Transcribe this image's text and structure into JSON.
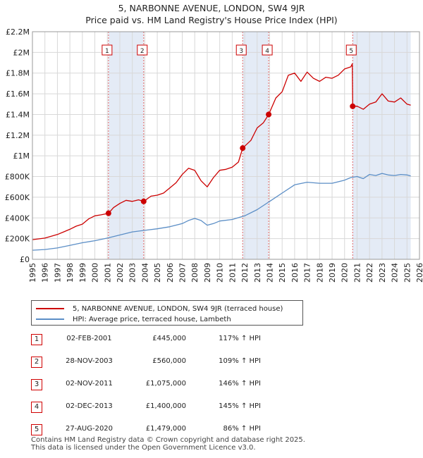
{
  "chart_data": {
    "type": "line",
    "title": "5, NARBONNE AVENUE, LONDON, SW4 9JR",
    "subtitle": "Price paid vs. HM Land Registry's House Price Index (HPI)",
    "xlabel": "",
    "ylabel": "",
    "xlim": [
      1995,
      2026
    ],
    "ylim": [
      0,
      2200000
    ],
    "grid": true,
    "x_ticks": [
      "1995",
      "1996",
      "1997",
      "1998",
      "1999",
      "2000",
      "2001",
      "2002",
      "2003",
      "2004",
      "2005",
      "2006",
      "2007",
      "2008",
      "2009",
      "2010",
      "2011",
      "2012",
      "2013",
      "2014",
      "2015",
      "2016",
      "2017",
      "2018",
      "2019",
      "2020",
      "2021",
      "2022",
      "2023",
      "2024",
      "2025",
      "2026"
    ],
    "y_ticks": [
      {
        "value": 0,
        "label": "£0"
      },
      {
        "value": 200000,
        "label": "£200K"
      },
      {
        "value": 400000,
        "label": "£400K"
      },
      {
        "value": 600000,
        "label": "£600K"
      },
      {
        "value": 800000,
        "label": "£800K"
      },
      {
        "value": 1000000,
        "label": "£1M"
      },
      {
        "value": 1200000,
        "label": "£1.2M"
      },
      {
        "value": 1400000,
        "label": "£1.4M"
      },
      {
        "value": 1600000,
        "label": "£1.6M"
      },
      {
        "value": 1800000,
        "label": "£1.8M"
      },
      {
        "value": 2000000,
        "label": "£2M"
      },
      {
        "value": 2200000,
        "label": "£2.2M"
      }
    ],
    "shaded_periods": [
      [
        2001.09,
        2003.91
      ],
      [
        2011.84,
        2013.92
      ],
      [
        2020.65,
        2025.3
      ]
    ],
    "series": [
      {
        "name": "5, NARBONNE AVENUE, LONDON, SW4 9JR (terraced house)",
        "color": "#cc0000",
        "x": [
          1995.0,
          1996.0,
          1997.0,
          1997.5,
          1998.0,
          1998.5,
          1999.0,
          1999.5,
          2000.0,
          2000.5,
          2001.09,
          2001.5,
          2002.0,
          2002.5,
          2003.0,
          2003.5,
          2003.91,
          2004.5,
          2005.0,
          2005.5,
          2006.0,
          2006.5,
          2007.0,
          2007.5,
          2008.0,
          2008.5,
          2009.0,
          2009.5,
          2010.0,
          2010.5,
          2011.0,
          2011.5,
          2011.84,
          2012.5,
          2013.0,
          2013.5,
          2013.92,
          2014.5,
          2015.0,
          2015.5,
          2016.0,
          2016.5,
          2017.0,
          2017.5,
          2018.0,
          2018.5,
          2019.0,
          2019.5,
          2020.0,
          2020.5,
          2020.62,
          2020.65,
          2021.0,
          2021.5,
          2022.0,
          2022.5,
          2023.0,
          2023.5,
          2024.0,
          2024.5,
          2025.0,
          2025.3
        ],
        "values": [
          190000,
          205000,
          240000,
          265000,
          290000,
          320000,
          340000,
          390000,
          420000,
          430000,
          445000,
          500000,
          540000,
          570000,
          560000,
          575000,
          560000,
          610000,
          620000,
          640000,
          690000,
          740000,
          820000,
          880000,
          860000,
          760000,
          700000,
          790000,
          860000,
          870000,
          890000,
          940000,
          1075000,
          1150000,
          1270000,
          1320000,
          1400000,
          1560000,
          1620000,
          1780000,
          1800000,
          1720000,
          1810000,
          1750000,
          1720000,
          1760000,
          1750000,
          1780000,
          1840000,
          1860000,
          1890000,
          1479000,
          1480000,
          1450000,
          1500000,
          1520000,
          1600000,
          1530000,
          1520000,
          1560000,
          1500000,
          1490000
        ]
      },
      {
        "name": "HPI: Average price, terraced house, Lambeth",
        "color": "#5b8ec6",
        "x": [
          1995.0,
          1996.0,
          1997.0,
          1998.0,
          1999.0,
          2000.0,
          2001.0,
          2002.0,
          2003.0,
          2004.0,
          2005.0,
          2006.0,
          2007.0,
          2007.5,
          2008.0,
          2008.5,
          2009.0,
          2009.5,
          2010.0,
          2011.0,
          2012.0,
          2013.0,
          2014.0,
          2015.0,
          2016.0,
          2017.0,
          2018.0,
          2019.0,
          2020.0,
          2020.5,
          2021.0,
          2021.5,
          2022.0,
          2022.5,
          2023.0,
          2023.5,
          2024.0,
          2024.5,
          2025.0,
          2025.3
        ],
        "values": [
          88000,
          95000,
          110000,
          135000,
          160000,
          180000,
          205000,
          235000,
          265000,
          280000,
          295000,
          315000,
          345000,
          375000,
          395000,
          375000,
          330000,
          345000,
          370000,
          385000,
          420000,
          480000,
          560000,
          640000,
          720000,
          745000,
          735000,
          735000,
          765000,
          790000,
          800000,
          780000,
          820000,
          810000,
          830000,
          815000,
          810000,
          820000,
          815000,
          805000
        ]
      }
    ],
    "sales": [
      {
        "id": "1",
        "date": "02-FEB-2001",
        "year": 2001.09,
        "price": 445000,
        "price_label": "£445,000",
        "hpi": "117% ↑ HPI"
      },
      {
        "id": "2",
        "date": "28-NOV-2003",
        "year": 2003.91,
        "price": 560000,
        "price_label": "£560,000",
        "hpi": "109% ↑ HPI"
      },
      {
        "id": "3",
        "date": "02-NOV-2011",
        "year": 2011.84,
        "price": 1075000,
        "price_label": "£1,075,000",
        "hpi": "146% ↑ HPI"
      },
      {
        "id": "4",
        "date": "02-DEC-2013",
        "year": 2013.92,
        "price": 1400000,
        "price_label": "£1,400,000",
        "hpi": "145% ↑ HPI"
      },
      {
        "id": "5",
        "date": "27-AUG-2020",
        "year": 2020.65,
        "price": 1479000,
        "price_label": "£1,479,000",
        "hpi": "86% ↑ HPI"
      }
    ]
  },
  "legend": {
    "property_label": "5, NARBONNE AVENUE, LONDON, SW4 9JR (terraced house)",
    "hpi_label": "HPI: Average price, terraced house, Lambeth",
    "property_color": "#cc0000",
    "hpi_color": "#5b8ec6"
  },
  "footer": {
    "line1": "Contains HM Land Registry data © Crown copyright and database right 2025.",
    "line2": "This data is licensed under the Open Government Licence v3.0."
  }
}
